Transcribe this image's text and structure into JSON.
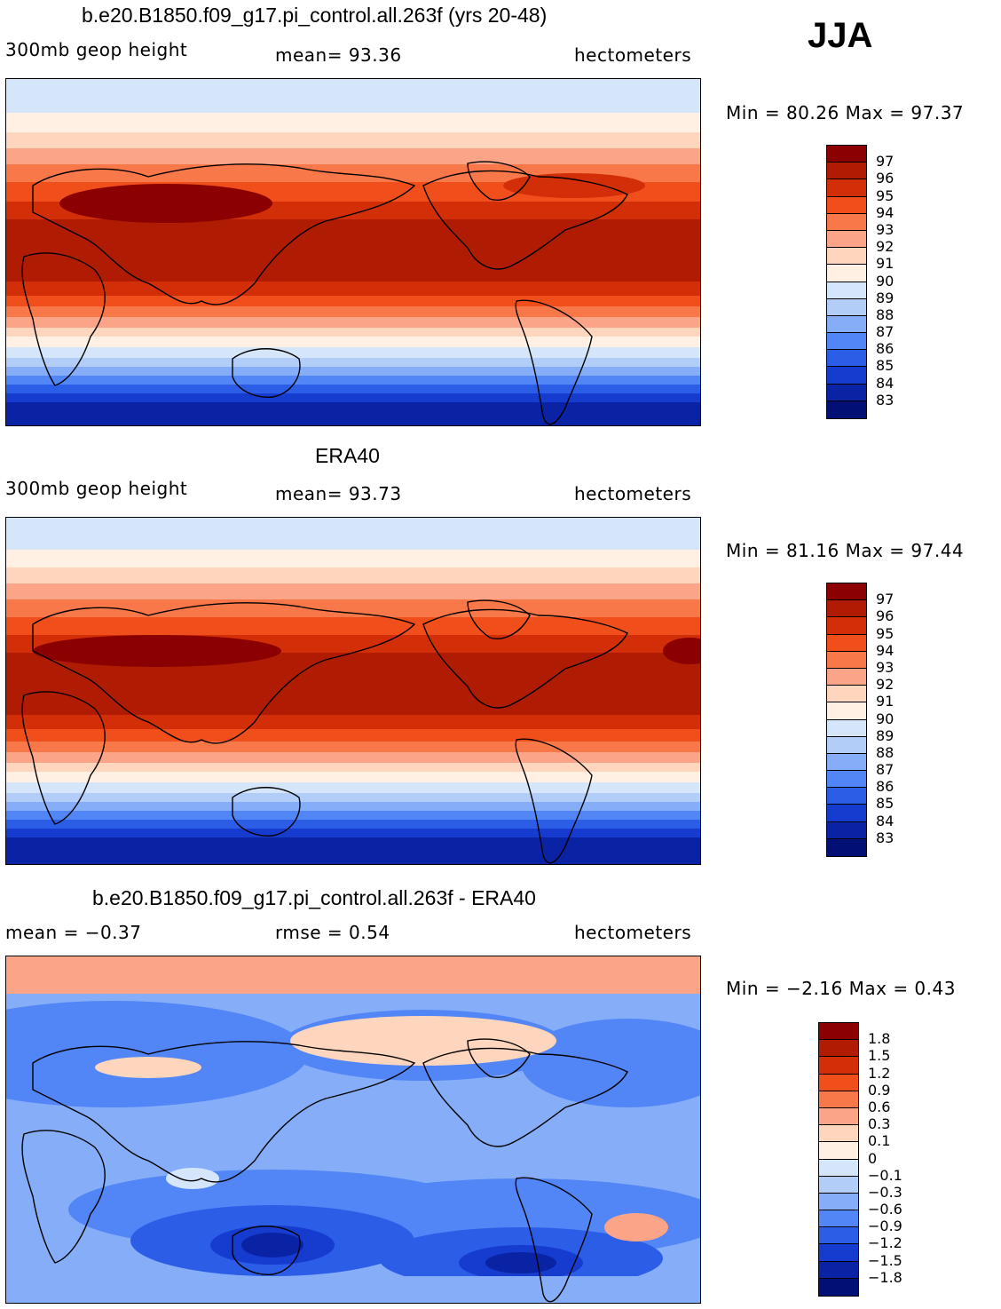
{
  "season": "JJA",
  "panels": [
    {
      "title": "b.e20.B1850.f09_g17.pi_control.all.263f (yrs 20-48)",
      "variable": "300mb geop height",
      "stat_text": "mean=  93.36",
      "units": "hectometers",
      "minmax": "Min =  80.26 Max =  97.37",
      "colorbar_labels": [
        "97",
        "96",
        "95",
        "94",
        "93",
        "92",
        "91",
        "90",
        "89",
        "88",
        "87",
        "86",
        "85",
        "84",
        "83"
      ],
      "colorbar_colors": [
        "#8b0000",
        "#b01c03",
        "#d22e07",
        "#f04f1c",
        "#f9784a",
        "#fca487",
        "#fed5bd",
        "#fff0e3",
        "#d6e6fa",
        "#b3cdf9",
        "#86adf8",
        "#5285f5",
        "#2c5de7",
        "#153bcf",
        "#0a23a4",
        "#020f75"
      ],
      "field": "sample_jja"
    },
    {
      "title": "ERA40",
      "variable": "300mb geop height",
      "stat_text": "mean=  93.73",
      "units": "hectometers",
      "minmax": "Min =  81.16 Max =  97.44",
      "colorbar_labels": [
        "97",
        "96",
        "95",
        "94",
        "93",
        "92",
        "91",
        "90",
        "89",
        "88",
        "87",
        "86",
        "85",
        "84",
        "83"
      ],
      "colorbar_colors": [
        "#8b0000",
        "#b01c03",
        "#d22e07",
        "#f04f1c",
        "#f9784a",
        "#fca487",
        "#fed5bd",
        "#fff0e3",
        "#d6e6fa",
        "#b3cdf9",
        "#86adf8",
        "#5285f5",
        "#2c5de7",
        "#153bcf",
        "#0a23a4",
        "#020f75"
      ],
      "field": "era40_jja"
    },
    {
      "title": "b.e20.B1850.f09_g17.pi_control.all.263f - ERA40",
      "stat_left": "mean =   −0.37",
      "stat_text": "rmse =    0.54",
      "units": "hectometers",
      "minmax": "Min =  −2.16 Max =    0.43",
      "colorbar_labels": [
        "1.8",
        "1.5",
        "1.2",
        "0.9",
        "0.6",
        "0.3",
        "0.1",
        "0",
        "−0.1",
        "−0.3",
        "−0.6",
        "−0.9",
        "−1.2",
        "−1.5",
        "−1.8"
      ],
      "colorbar_colors": [
        "#8b0000",
        "#b01c03",
        "#d22e07",
        "#f04f1c",
        "#f9784a",
        "#fca487",
        "#fed5bd",
        "#fff0e3",
        "#d6e6fa",
        "#b3cdf9",
        "#86adf8",
        "#5285f5",
        "#2c5de7",
        "#153bcf",
        "#0a23a4",
        "#020f75"
      ],
      "field": "difference"
    }
  ]
}
